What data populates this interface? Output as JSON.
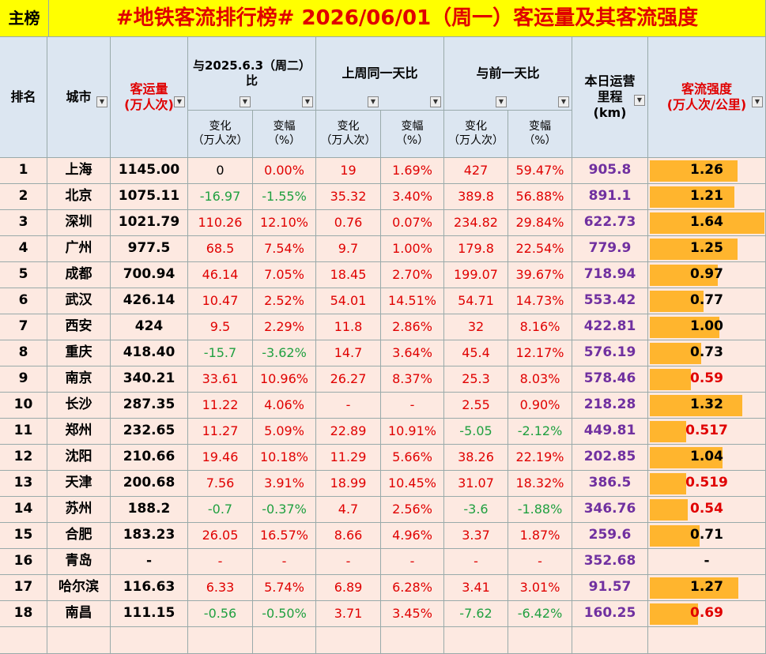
{
  "header": {
    "tag": "主榜",
    "title": "#地铁客流排行榜# 2026/06/01（周一）客运量及其客流强度"
  },
  "columns": [
    {
      "lines": [
        "排名"
      ]
    },
    {
      "lines": [
        "城市"
      ]
    },
    {
      "lines": [
        "客运量",
        "(万人次)"
      ]
    },
    {
      "lines": [
        "与2025.6.3（周二）",
        "比"
      ]
    },
    {
      "lines": [
        "上周同一天比"
      ]
    },
    {
      "lines": [
        "与前一天比"
      ]
    },
    {
      "lines": [
        "本日运营",
        "里程",
        "(km)"
      ]
    },
    {
      "lines": [
        "客流强度",
        "(万人次/公里)"
      ]
    }
  ],
  "subcolumns": [
    {
      "lines": [
        "变化",
        "（万人次）"
      ]
    },
    {
      "lines": [
        "变幅",
        "（%）"
      ]
    },
    {
      "lines": [
        "变化",
        "（万人次）"
      ]
    },
    {
      "lines": [
        "变幅",
        "（%）"
      ]
    },
    {
      "lines": [
        "变化",
        "（万人次）"
      ]
    },
    {
      "lines": [
        "变幅",
        "（%）"
      ]
    }
  ],
  "table": {
    "rows": [
      [
        "1",
        "上海",
        "1145.00",
        "0",
        "0.00%",
        "19",
        "1.69%",
        "427",
        "59.47%",
        "905.8",
        "1.26"
      ],
      [
        "2",
        "北京",
        "1075.11",
        "-16.97",
        "-1.55%",
        "35.32",
        "3.40%",
        "389.8",
        "56.88%",
        "891.1",
        "1.21"
      ],
      [
        "3",
        "深圳",
        "1021.79",
        "110.26",
        "12.10%",
        "0.76",
        "0.07%",
        "234.82",
        "29.84%",
        "622.73",
        "1.64"
      ],
      [
        "4",
        "广州",
        "977.5",
        "68.5",
        "7.54%",
        "9.7",
        "1.00%",
        "179.8",
        "22.54%",
        "779.9",
        "1.25"
      ],
      [
        "5",
        "成都",
        "700.94",
        "46.14",
        "7.05%",
        "18.45",
        "2.70%",
        "199.07",
        "39.67%",
        "718.94",
        "0.97"
      ],
      [
        "6",
        "武汉",
        "426.14",
        "10.47",
        "2.52%",
        "54.01",
        "14.51%",
        "54.71",
        "14.73%",
        "553.42",
        "0.77"
      ],
      [
        "7",
        "西安",
        "424",
        "9.5",
        "2.29%",
        "11.8",
        "2.86%",
        "32",
        "8.16%",
        "422.81",
        "1.00"
      ],
      [
        "8",
        "重庆",
        "418.40",
        "-15.7",
        "-3.62%",
        "14.7",
        "3.64%",
        "45.4",
        "12.17%",
        "576.19",
        "0.73"
      ],
      [
        "9",
        "南京",
        "340.21",
        "33.61",
        "10.96%",
        "26.27",
        "8.37%",
        "25.3",
        "8.03%",
        "578.46",
        "0.59"
      ],
      [
        "10",
        "长沙",
        "287.35",
        "11.22",
        "4.06%",
        "-",
        "-",
        "2.55",
        "0.90%",
        "218.28",
        "1.32"
      ],
      [
        "11",
        "郑州",
        "232.65",
        "11.27",
        "5.09%",
        "22.89",
        "10.91%",
        "-5.05",
        "-2.12%",
        "449.81",
        "0.517"
      ],
      [
        "12",
        "沈阳",
        "210.66",
        "19.46",
        "10.18%",
        "11.29",
        "5.66%",
        "38.26",
        "22.19%",
        "202.85",
        "1.04"
      ],
      [
        "13",
        "天津",
        "200.68",
        "7.56",
        "3.91%",
        "18.99",
        "10.45%",
        "31.07",
        "18.32%",
        "386.5",
        "0.519"
      ],
      [
        "14",
        "苏州",
        "188.2",
        "-0.7",
        "-0.37%",
        "4.7",
        "2.56%",
        "-3.6",
        "-1.88%",
        "346.76",
        "0.54"
      ],
      [
        "15",
        "合肥",
        "183.23",
        "26.05",
        "16.57%",
        "8.66",
        "4.96%",
        "3.37",
        "1.87%",
        "259.6",
        "0.71"
      ],
      [
        "16",
        "青岛",
        "-",
        "-",
        "-",
        "-",
        "-",
        "-",
        "-",
        "352.68",
        "-"
      ],
      [
        "17",
        "哈尔滨",
        "116.63",
        "6.33",
        "5.74%",
        "6.89",
        "6.28%",
        "3.41",
        "3.01%",
        "91.57",
        "1.27"
      ],
      [
        "18",
        "南昌",
        "111.15",
        "-0.56",
        "-0.50%",
        "3.71",
        "3.45%",
        "-7.62",
        "-6.42%",
        "160.25",
        "0.69"
      ]
    ]
  }
}
